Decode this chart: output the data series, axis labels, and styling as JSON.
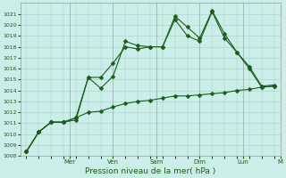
{
  "background_color": "#cceee8",
  "grid_color": "#aacccc",
  "line_color": "#1a5c1a",
  "xlabel": "Pression niveau de la mer( hPa )",
  "ylim": [
    1008,
    1022
  ],
  "yticks": [
    1008,
    1009,
    1010,
    1011,
    1012,
    1013,
    1014,
    1015,
    1016,
    1017,
    1018,
    1019,
    1020,
    1021
  ],
  "series1_x": [
    0,
    1,
    2,
    3,
    4,
    5,
    6,
    7,
    8,
    9,
    10,
    11,
    12,
    13,
    14,
    15,
    16,
    17,
    18,
    19,
    20
  ],
  "series1_y": [
    1008.4,
    1010.2,
    1011.1,
    1011.1,
    1011.3,
    1015.2,
    1015.2,
    1016.5,
    1018.0,
    1017.8,
    1018.0,
    1018.0,
    1020.5,
    1019.0,
    1018.5,
    1021.2,
    1018.8,
    1017.5,
    1016.0,
    1014.3,
    1014.4
  ],
  "series2_x": [
    0,
    1,
    2,
    3,
    4,
    5,
    6,
    7,
    8,
    9,
    10,
    11,
    12,
    13,
    14,
    15,
    16,
    17,
    18,
    19,
    20
  ],
  "series2_y": [
    1008.4,
    1010.2,
    1011.1,
    1011.1,
    1011.5,
    1015.2,
    1014.2,
    1015.3,
    1018.5,
    1018.1,
    1018.0,
    1018.0,
    1020.8,
    1019.8,
    1018.8,
    1021.3,
    1019.2,
    1017.5,
    1016.2,
    1014.4,
    1014.5
  ],
  "series3_x": [
    0,
    1,
    2,
    3,
    4,
    5,
    6,
    7,
    8,
    9,
    10,
    11,
    12,
    13,
    14,
    15,
    16,
    17,
    18,
    19,
    20
  ],
  "series3_y": [
    1008.4,
    1010.2,
    1011.1,
    1011.1,
    1011.5,
    1012.0,
    1012.1,
    1012.5,
    1012.8,
    1013.0,
    1013.1,
    1013.3,
    1013.5,
    1013.5,
    1013.6,
    1013.7,
    1013.8,
    1014.0,
    1014.1,
    1014.3,
    1014.4
  ],
  "num_points": 21,
  "day_tick_positions": [
    3.5,
    7.0,
    10.5,
    14.0,
    17.5,
    20.5
  ],
  "day_tick_labels": [
    "Mer",
    "Ven",
    "Sam",
    "Dim",
    "Lun",
    "M"
  ]
}
